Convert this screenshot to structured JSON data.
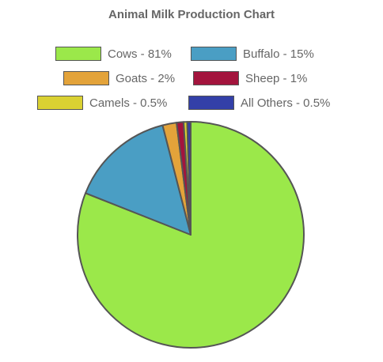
{
  "chart_data": {
    "type": "pie",
    "title": "Animal Milk Production Chart",
    "legend_position": "top",
    "slices": [
      {
        "label": "Cows - 81%",
        "value": 81,
        "color": "#9be84a"
      },
      {
        "label": "Buffalo - 15%",
        "value": 15,
        "color": "#4a9ec4"
      },
      {
        "label": "Goats - 2%",
        "value": 2,
        "color": "#e3a33a"
      },
      {
        "label": "Sheep - 1%",
        "value": 1,
        "color": "#a3143d"
      },
      {
        "label": "Camels - 0.5%",
        "value": 0.5,
        "color": "#dad132"
      },
      {
        "label": "All Others - 0.5%",
        "value": 0.5,
        "color": "#3340a8"
      }
    ]
  }
}
